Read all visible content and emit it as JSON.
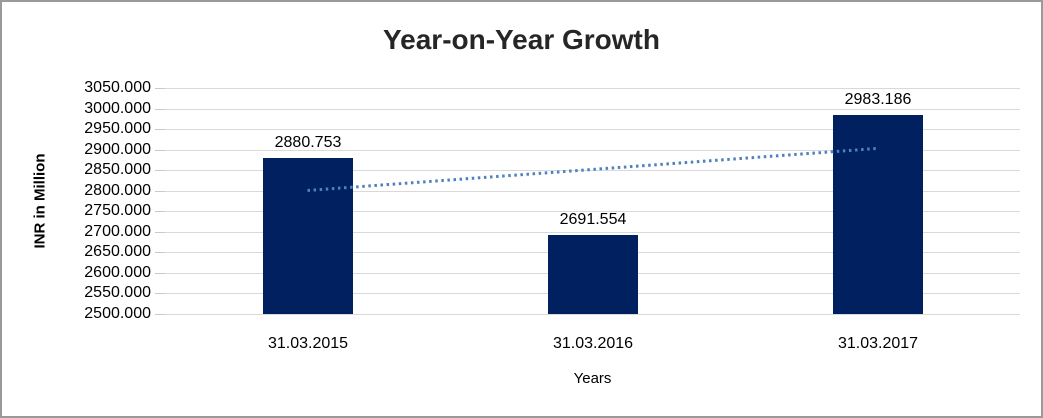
{
  "chart_data": {
    "type": "bar",
    "title": "Year-on-Year Growth",
    "xlabel": "Years",
    "ylabel": "INR in Million",
    "categories": [
      "31.03.2015",
      "31.03.2016",
      "31.03.2017"
    ],
    "values": [
      2880.753,
      2691.554,
      2983.186
    ],
    "data_labels": [
      "2880.753",
      "2691.554",
      "2983.186"
    ],
    "ylim": [
      2500,
      3050
    ],
    "ytick_step": 50,
    "ytick_labels": [
      "3050.000",
      "3000.000",
      "2950.000",
      "2900.000",
      "2850.000",
      "2800.000",
      "2750.000",
      "2700.000",
      "2650.000",
      "2600.000",
      "2550.000",
      "2500.000"
    ],
    "grid": "horizontal",
    "legend": "none",
    "colors": {
      "bar": "#002060",
      "trendline": "#4f81bd",
      "gridline": "#d9d9d9",
      "tick": "#c9c9c9",
      "title_text": "#262626",
      "axis_text": "#000000"
    },
    "trendline": {
      "type": "linear",
      "style": "dotted",
      "start_value": 2800.6,
      "end_value": 2903.0
    }
  }
}
